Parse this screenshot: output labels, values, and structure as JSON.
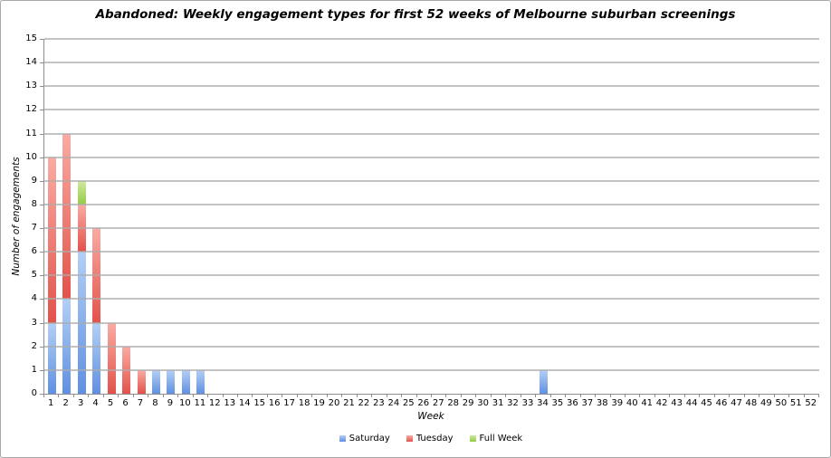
{
  "window": {
    "background": "#ffffff",
    "border_color": "#a9a9a9",
    "axis_color": "#8e8e8e",
    "gridline_color": "#acacac"
  },
  "chart_data": {
    "type": "bar",
    "stacked": true,
    "title": "Abandoned: Weekly engagement types for first 52 weeks of Melbourne suburban screenings",
    "xlabel": "Week",
    "ylabel": "Number of engagements",
    "ylim": [
      0,
      15
    ],
    "ytick_step": 1,
    "grid": true,
    "gridlines_over_bars": true,
    "legend_position": "bottom",
    "categories": [
      1,
      2,
      3,
      4,
      5,
      6,
      7,
      8,
      9,
      10,
      11,
      12,
      13,
      14,
      15,
      16,
      17,
      18,
      19,
      20,
      21,
      22,
      23,
      24,
      25,
      26,
      27,
      28,
      29,
      30,
      31,
      32,
      33,
      34,
      35,
      36,
      37,
      38,
      39,
      40,
      41,
      42,
      43,
      44,
      45,
      46,
      47,
      48,
      49,
      50,
      51,
      52
    ],
    "series": [
      {
        "name": "Saturday",
        "color": "#7da8ec",
        "color_top": "#b4cff5",
        "color_bottom": "#6090e0",
        "values": [
          3,
          4,
          6,
          3,
          0,
          0,
          0,
          1,
          1,
          1,
          1,
          0,
          0,
          0,
          0,
          0,
          0,
          0,
          0,
          0,
          0,
          0,
          0,
          0,
          0,
          0,
          0,
          0,
          0,
          0,
          0,
          0,
          0,
          1,
          0,
          0,
          0,
          0,
          0,
          0,
          0,
          0,
          0,
          0,
          0,
          0,
          0,
          0,
          0,
          0,
          0,
          0
        ]
      },
      {
        "name": "Tuesday",
        "color": "#f1736c",
        "color_top": "#f9aba3",
        "color_bottom": "#e2524b",
        "values": [
          7,
          7,
          2,
          4,
          3,
          2,
          1,
          0,
          0,
          0,
          0,
          0,
          0,
          0,
          0,
          0,
          0,
          0,
          0,
          0,
          0,
          0,
          0,
          0,
          0,
          0,
          0,
          0,
          0,
          0,
          0,
          0,
          0,
          0,
          0,
          0,
          0,
          0,
          0,
          0,
          0,
          0,
          0,
          0,
          0,
          0,
          0,
          0,
          0,
          0,
          0,
          0
        ]
      },
      {
        "name": "Full Week",
        "color": "#abd761",
        "color_top": "#cfe9a0",
        "color_bottom": "#96cb45",
        "values": [
          0,
          0,
          1,
          0,
          0,
          0,
          0,
          0,
          0,
          0,
          0,
          0,
          0,
          0,
          0,
          0,
          0,
          0,
          0,
          0,
          0,
          0,
          0,
          0,
          0,
          0,
          0,
          0,
          0,
          0,
          0,
          0,
          0,
          0,
          0,
          0,
          0,
          0,
          0,
          0,
          0,
          0,
          0,
          0,
          0,
          0,
          0,
          0,
          0,
          0,
          0,
          0
        ]
      }
    ]
  }
}
